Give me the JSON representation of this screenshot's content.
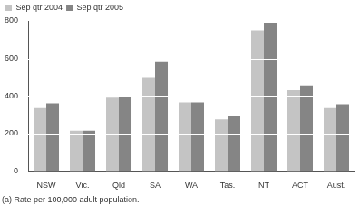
{
  "chart_data": {
    "type": "bar",
    "categories": [
      "NSW",
      "Vic.",
      "Qld",
      "SA",
      "WA",
      "Tas.",
      "NT",
      "ACT",
      "Aust."
    ],
    "series": [
      {
        "name": "Sep qtr 2004",
        "color": "#c4c4c4",
        "values": [
          335,
          215,
          395,
          500,
          365,
          275,
          750,
          430,
          335
        ]
      },
      {
        "name": "Sep qtr 2005",
        "color": "#858585",
        "values": [
          360,
          215,
          400,
          580,
          365,
          290,
          790,
          455,
          355
        ]
      }
    ],
    "ylim": [
      0,
      800
    ],
    "yticks": [
      0,
      200,
      400,
      600,
      800
    ],
    "grid": true,
    "legend": "top-left",
    "annotations": [
      "(a) Rate per 100,000 adult population."
    ]
  }
}
